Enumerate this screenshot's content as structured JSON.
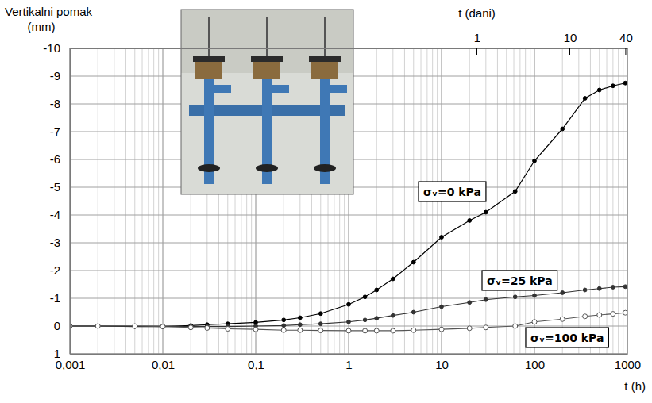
{
  "chart_data": {
    "type": "line",
    "xlabel": "t (h)",
    "ylabel": "Vertikalni pomak (mm)",
    "x2label": "t (dani)",
    "log": "x",
    "grid": true,
    "x": [
      0.001,
      0.002,
      0.005,
      0.01,
      0.02,
      0.03,
      0.05,
      0.1,
      0.2,
      0.3,
      0.5,
      1,
      1.5,
      2,
      3,
      5,
      10,
      20,
      30,
      62,
      100,
      200,
      350,
      500,
      700,
      950
    ],
    "series": [
      {
        "name": "σᵥ=0 kPa",
        "color": "#000000",
        "marker": "circle",
        "line_style": "solid",
        "values": [
          0,
          0,
          0.02,
          0.02,
          -0.02,
          -0.05,
          -0.08,
          -0.13,
          -0.22,
          -0.3,
          -0.45,
          -0.78,
          -1.05,
          -1.3,
          -1.7,
          -2.3,
          -3.2,
          -3.8,
          -4.1,
          -4.85,
          -5.95,
          -7.1,
          -8.2,
          -8.5,
          -8.65,
          -8.75
        ]
      },
      {
        "name": "σᵥ=25 kPa",
        "color": "#333333",
        "marker": "circle",
        "line_style": "solid",
        "values": [
          0,
          0,
          0,
          0,
          0.02,
          0.02,
          0.02,
          0,
          -0.02,
          -0.05,
          -0.08,
          -0.15,
          -0.22,
          -0.28,
          -0.38,
          -0.5,
          -0.7,
          -0.85,
          -0.95,
          -1.05,
          -1.1,
          -1.2,
          -1.3,
          -1.35,
          -1.4,
          -1.42
        ]
      },
      {
        "name": "σᵥ=100 kPa",
        "color": "#555555",
        "marker": "open_circle",
        "line_style": "solid",
        "values": [
          0,
          0,
          0,
          0.02,
          0.05,
          0.07,
          0.1,
          0.12,
          0.15,
          0.15,
          0.16,
          0.17,
          0.17,
          0.17,
          0.17,
          0.15,
          0.12,
          0.08,
          0.05,
          0,
          -0.15,
          -0.25,
          -0.35,
          -0.4,
          -0.44,
          -0.48
        ]
      }
    ],
    "xlim": [
      0.001,
      1000
    ],
    "xticks": [
      {
        "value": 0.001,
        "label": "0,001"
      },
      {
        "value": 0.01,
        "label": "0,01"
      },
      {
        "value": 0.1,
        "label": "0,1"
      },
      1,
      10,
      100,
      1000
    ],
    "xminorticks": [
      0.002,
      0.003,
      0.004,
      0.005,
      0.006,
      0.007,
      0.008,
      0.009,
      0.02,
      0.03,
      0.04,
      0.05,
      0.06,
      0.07,
      0.08,
      0.09,
      0.2,
      0.3,
      0.4,
      0.5,
      0.6,
      0.7,
      0.8,
      0.9,
      2,
      3,
      4,
      5,
      6,
      7,
      8,
      9,
      20,
      30,
      40,
      50,
      60,
      70,
      80,
      90,
      200,
      300,
      400,
      500,
      600,
      700,
      800,
      900
    ],
    "x2ticks": [
      {
        "value": 24,
        "label": "1"
      },
      {
        "value": 240,
        "label": "10"
      },
      {
        "value": 960,
        "label": "40"
      }
    ],
    "ylim": [
      -10,
      1
    ],
    "yticks": [
      -10,
      -9,
      -8,
      -7,
      -6,
      -5,
      -4,
      -3,
      -2,
      -1,
      0,
      1
    ]
  }
}
